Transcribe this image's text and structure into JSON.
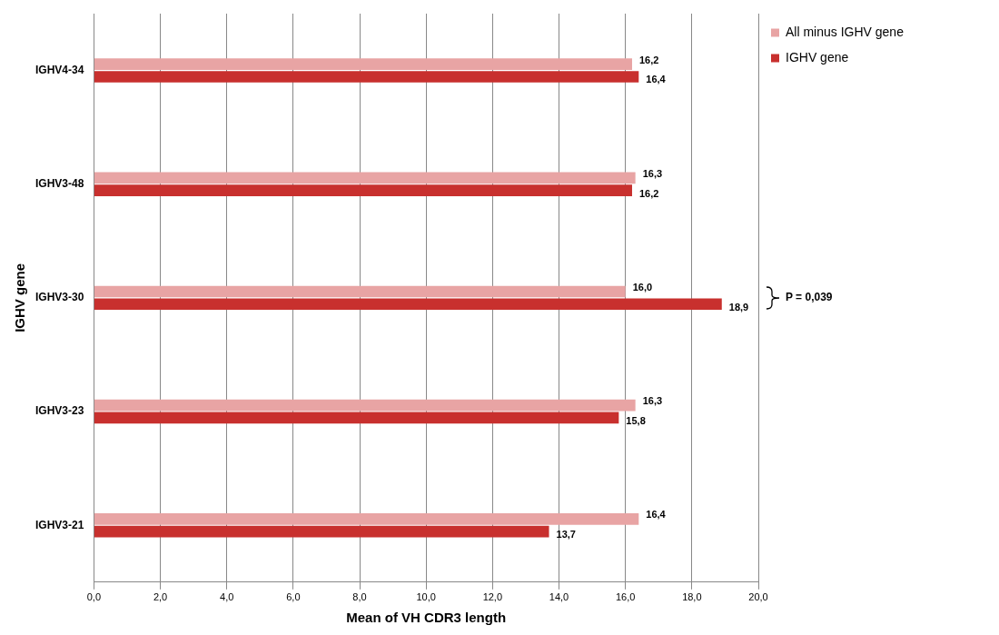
{
  "chart_data": {
    "type": "bar",
    "orientation": "horizontal",
    "xlabel": "Mean of VH CDR3 length",
    "ylabel": "IGHV gene",
    "categories": [
      "IGHV4-34",
      "IGHV3-48",
      "IGHV3-30",
      "IGHV3-23",
      "IGHV3-21"
    ],
    "series": [
      {
        "name": "All minus IGHV gene",
        "color": "#e8a4a4",
        "values": [
          16.2,
          16.3,
          16.0,
          16.3,
          16.4
        ],
        "value_labels": [
          "16,2",
          "16,3",
          "16,0",
          "16,3",
          "16,4"
        ]
      },
      {
        "name": "IGHV gene",
        "color": "#c8302e",
        "values": [
          16.4,
          16.2,
          18.9,
          15.8,
          13.7
        ],
        "value_labels": [
          "16,4",
          "16,2",
          "18,9",
          "15,8",
          "13,7"
        ]
      }
    ],
    "xlim": [
      0,
      20
    ],
    "xticks": [
      {
        "value": 0,
        "label": "0,0"
      },
      {
        "value": 2,
        "label": "2,0"
      },
      {
        "value": 4,
        "label": "4,0"
      },
      {
        "value": 6,
        "label": "6,0"
      },
      {
        "value": 8,
        "label": "8,0"
      },
      {
        "value": 10,
        "label": "10,0"
      },
      {
        "value": 12,
        "label": "12,0"
      },
      {
        "value": 14,
        "label": "14,0"
      },
      {
        "value": 16,
        "label": "16,0"
      },
      {
        "value": 18,
        "label": "18,0"
      },
      {
        "value": 20,
        "label": "20,0"
      }
    ],
    "annotations": [
      "P = 0,039"
    ],
    "grid": "x",
    "legend": "top right"
  }
}
